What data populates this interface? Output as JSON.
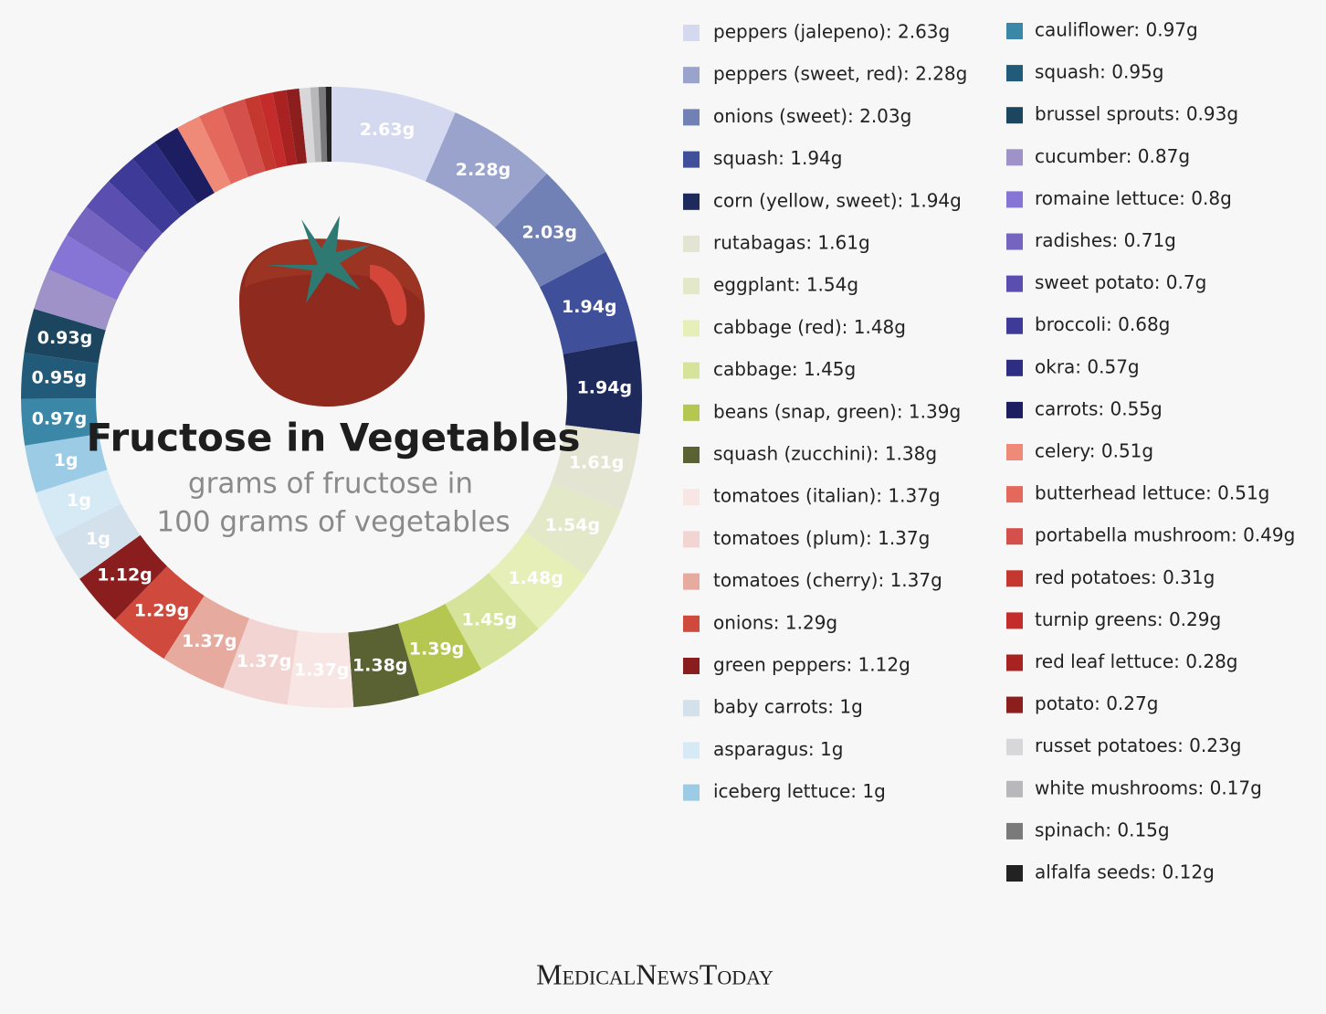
{
  "chart_data": {
    "type": "donut",
    "title": "Fructose in Vegetables",
    "subtitle": [
      "grams of fructose in",
      "100 grams of vegetables"
    ],
    "source": "MedicalNewsToday",
    "categories": [
      "peppers (jalepeno): 2.63g",
      "peppers (sweet, red): 2.28g",
      "onions (sweet): 2.03g",
      "squash: 1.94g",
      "corn (yellow, sweet): 1.94g",
      "rutabagas: 1.61g",
      "eggplant: 1.54g",
      "cabbage (red): 1.48g",
      "cabbage: 1.45g",
      "beans (snap, green): 1.39g",
      "squash (zucchini): 1.38g",
      "tomatoes (italian): 1.37g",
      "tomatoes (plum): 1.37g",
      "tomatoes (cherry): 1.37g",
      "onions: 1.29g",
      "green peppers: 1.12g",
      "baby carrots: 1g",
      "asparagus: 1g",
      "iceberg lettuce: 1g",
      "cauliflower: 0.97g",
      "squash: 0.95g",
      "brussel sprouts: 0.93g",
      "cucumber: 0.87g",
      "romaine lettuce: 0.8g",
      "radishes: 0.71g",
      "sweet potato: 0.7g",
      "broccoli: 0.68g",
      "okra: 0.57g",
      "carrots: 0.55g",
      "celery: 0.51g",
      "butterhead lettuce: 0.51g",
      "portabella mushroom: 0.49g",
      "red potatoes: 0.31g",
      "turnip greens: 0.29g",
      "red leaf lettuce: 0.28g",
      "potato: 0.27g",
      "russet potatoes: 0.23g",
      "white mushrooms: 0.17g",
      "spinach: 0.15g",
      "alfalfa seeds: 0.12g"
    ],
    "values": [
      2.63,
      2.28,
      2.03,
      1.94,
      1.94,
      1.61,
      1.54,
      1.48,
      1.45,
      1.39,
      1.38,
      1.37,
      1.37,
      1.37,
      1.29,
      1.12,
      1,
      1,
      1,
      0.97,
      0.95,
      0.93,
      0.87,
      0.8,
      0.71,
      0.7,
      0.68,
      0.57,
      0.55,
      0.51,
      0.51,
      0.49,
      0.31,
      0.29,
      0.28,
      0.27,
      0.23,
      0.17,
      0.15,
      0.12
    ],
    "value_labels": [
      "2.63g",
      "2.28g",
      "2.03g",
      "1.94g",
      "1.94g",
      "1.61g",
      "1.54g",
      "1.48g",
      "1.45g",
      "1.39g",
      "1.38g",
      "1.37g",
      "1.37g",
      "1.37g",
      "1.29g",
      "1.12g",
      "1g",
      "1g",
      "1g",
      "0.97g",
      "0.95g",
      "0.93g",
      null,
      null,
      null,
      null,
      null,
      null,
      null,
      null,
      null,
      null,
      null,
      null,
      null,
      null,
      null,
      null,
      null,
      null
    ],
    "colors": [
      "#d5d9ef",
      "#9aa3cc",
      "#7180b5",
      "#3f4f9a",
      "#1f2a5c",
      "#e4e4d2",
      "#e3e8c8",
      "#e6efb8",
      "#d6e39a",
      "#b5c751",
      "#5a6233",
      "#f7e6e4",
      "#f2d5d2",
      "#e6aa9f",
      "#cf4a3c",
      "#8a1e1e",
      "#d2e1ec",
      "#d6eaf6",
      "#9ccbe6",
      "#3a87a8",
      "#225a7a",
      "#1c4660",
      "#9e92c9",
      "#8675d4",
      "#7565c0",
      "#5a4fb0",
      "#3e3a98",
      "#2e2d84",
      "#1d1e62",
      "#ef8a78",
      "#e4685c",
      "#d4504a",
      "#c4382f",
      "#c42b2b",
      "#a82222",
      "#8c1e1e",
      "#d7d7d9",
      "#b8b8ba",
      "#7a7a7a",
      "#222222"
    ]
  }
}
